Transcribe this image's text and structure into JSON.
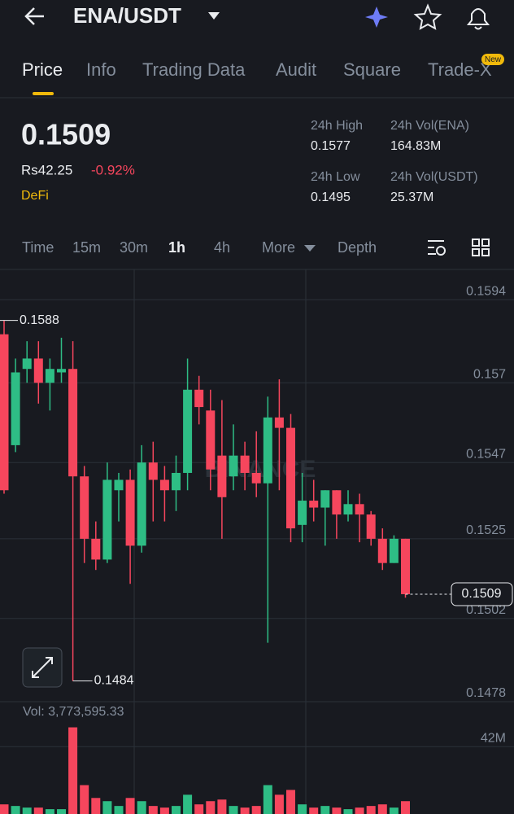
{
  "header": {
    "pair": "ENA/USDT"
  },
  "tabs": {
    "items": [
      "Price",
      "Info",
      "Trading Data",
      "Audit",
      "Square",
      "Trade-X"
    ],
    "badge": "New"
  },
  "ticker": {
    "price": "0.1509",
    "fiat": "Rs42.25",
    "change": "-0.92%",
    "tag": "DeFi",
    "stats": [
      {
        "label": "24h High",
        "value": "0.1577"
      },
      {
        "label": "24h Vol(ENA)",
        "value": "164.83M"
      },
      {
        "label": "24h Low",
        "value": "0.1495"
      },
      {
        "label": "24h Vol(USDT)",
        "value": "25.37M"
      }
    ]
  },
  "intervals": [
    "Time",
    "15m",
    "30m",
    "1h",
    "4h",
    "More",
    "Depth"
  ],
  "chart_data": {
    "type": "candlestick",
    "open": [
      0.1584,
      0.1552,
      0.1574,
      0.1577,
      0.157,
      0.1573,
      0.1574,
      0.1543,
      0.1525,
      0.1519,
      0.1539,
      0.1542,
      0.1523,
      0.1547,
      0.1542,
      0.1539,
      0.1544,
      0.1568,
      0.1562,
      0.1549,
      0.1543,
      0.1549,
      0.1544,
      0.1541,
      0.156,
      0.1557,
      0.1529,
      0.1536,
      0.1534,
      0.1539,
      0.1532,
      0.1535,
      0.1532,
      0.1525,
      0.1518,
      0.1525
    ],
    "high": [
      0.1588,
      0.1577,
      0.1582,
      0.1582,
      0.1577,
      0.1583,
      0.1582,
      0.1546,
      0.153,
      0.1547,
      0.1544,
      0.1545,
      0.1552,
      0.1553,
      0.1546,
      0.1549,
      0.1577,
      0.1572,
      0.1568,
      0.1565,
      0.1558,
      0.1553,
      0.1556,
      0.1566,
      0.1571,
      0.1561,
      0.1544,
      0.1542,
      0.1539,
      0.1539,
      0.1539,
      0.1538,
      0.1533,
      0.1528,
      0.1526,
      0.1525
    ],
    "low": [
      0.1538,
      0.155,
      0.157,
      0.1564,
      0.1562,
      0.157,
      0.1484,
      0.1518,
      0.1516,
      0.1518,
      0.153,
      0.1512,
      0.1521,
      0.153,
      0.153,
      0.1533,
      0.1539,
      0.1558,
      0.1539,
      0.1525,
      0.1539,
      0.1539,
      0.1537,
      0.1495,
      0.1539,
      0.1524,
      0.1524,
      0.153,
      0.1523,
      0.1525,
      0.153,
      0.1524,
      0.1523,
      0.1516,
      0.1518,
      0.1508
    ],
    "close": [
      0.1539,
      0.1573,
      0.1577,
      0.157,
      0.1574,
      0.1574,
      0.1543,
      0.1525,
      0.1519,
      0.1542,
      0.1542,
      0.1523,
      0.1547,
      0.1542,
      0.1539,
      0.1544,
      0.1568,
      0.1563,
      0.1545,
      0.1537,
      0.1549,
      0.1544,
      0.1541,
      0.156,
      0.1557,
      0.1528,
      0.1536,
      0.1534,
      0.1539,
      0.1532,
      0.1535,
      0.1532,
      0.1525,
      0.1518,
      0.1525,
      0.1509
    ],
    "up_color": "#2ebd85",
    "down_color": "#f6465d",
    "ylim": [
      0.1478,
      0.1602
    ],
    "yticks": [
      0.1594,
      0.157,
      0.1547,
      0.1525,
      0.1502,
      0.1478
    ],
    "grid": true,
    "high_marker": 0.1588,
    "low_marker": 0.1484,
    "last_price": 0.1509,
    "watermark": "BINANCE",
    "volume": {
      "label": "Vol: 3,773,595.33",
      "values": [
        6000000,
        5000000,
        4000000,
        4000000,
        3000000,
        3000000,
        54000000,
        18000000,
        10000000,
        8000000,
        5000000,
        10000000,
        8000000,
        5000000,
        4000000,
        5000000,
        12000000,
        6000000,
        8000000,
        9000000,
        5000000,
        4000000,
        5000000,
        18000000,
        12000000,
        15000000,
        6000000,
        4000000,
        5000000,
        4000000,
        3000000,
        4000000,
        5000000,
        6000000,
        4000000,
        8000000
      ],
      "ylim": [
        0,
        70000000
      ],
      "yticks": [
        {
          "value": 42000000,
          "label": "42M"
        }
      ]
    }
  }
}
